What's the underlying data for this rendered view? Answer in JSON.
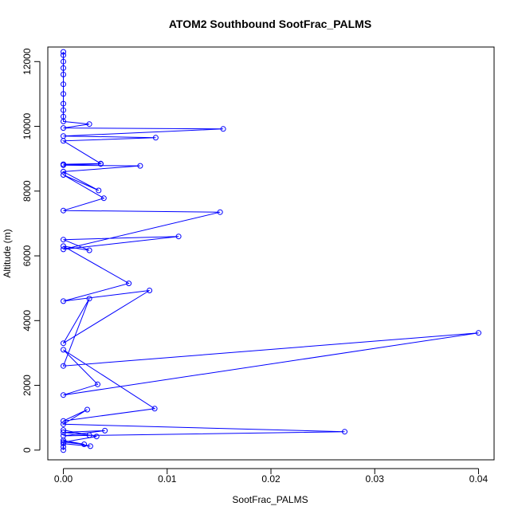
{
  "chart_data": {
    "type": "line",
    "title": "ATOM2 Southbound SootFrac_PALMS",
    "xlabel": "SootFrac_PALMS",
    "ylabel": "Altitude (m)",
    "xlim": [
      -0.0015,
      0.0415
    ],
    "ylim": [
      -300,
      12450
    ],
    "xticks": [
      0.0,
      0.01,
      0.02,
      0.03,
      0.04
    ],
    "xtick_labels": [
      "0.00",
      "0.01",
      "0.02",
      "0.03",
      "0.04"
    ],
    "yticks": [
      0,
      2000,
      4000,
      6000,
      8000,
      10000,
      12000
    ],
    "ytick_labels": [
      "0",
      "2000",
      "4000",
      "6000",
      "8000",
      "10000",
      "12000"
    ],
    "grid": false,
    "legend": "none",
    "marker": "open-circle",
    "color": "#0000ff",
    "series": [
      {
        "x": [
          0,
          0,
          0,
          0,
          0,
          0,
          0,
          0,
          0,
          0,
          0,
          0.0025,
          0,
          0.0154,
          0,
          0.0089,
          0,
          0.0036,
          0,
          0.0036,
          0,
          0.0074,
          0,
          0.0034,
          0,
          0.0039,
          0,
          0.0151,
          0,
          0.0111,
          0,
          0.0025,
          0,
          0.0063,
          0,
          0.0083,
          0,
          0.0025,
          0,
          0.04,
          0,
          0.0033,
          0,
          0.0088,
          0,
          0.0023,
          0,
          0.0271,
          0,
          0.004,
          0,
          0.0025,
          0,
          0.0032,
          0,
          0.002,
          0,
          0.0026,
          0,
          0,
          0
        ],
        "y": [
          12300,
          12200,
          12000,
          11800,
          11600,
          11300,
          11000,
          10700,
          10500,
          10300,
          10150,
          10070,
          9950,
          9920,
          9700,
          9650,
          9550,
          8850,
          8830,
          8840,
          8800,
          8780,
          8600,
          8020,
          8500,
          7780,
          7400,
          7350,
          6200,
          6600,
          6500,
          6170,
          6300,
          5150,
          4600,
          4930,
          3300,
          4680,
          2600,
          3620,
          1700,
          2030,
          3100,
          1280,
          900,
          1250,
          800,
          570,
          440,
          600,
          550,
          460,
          620,
          420,
          250,
          180,
          300,
          120,
          200,
          100,
          0
        ]
      }
    ]
  }
}
